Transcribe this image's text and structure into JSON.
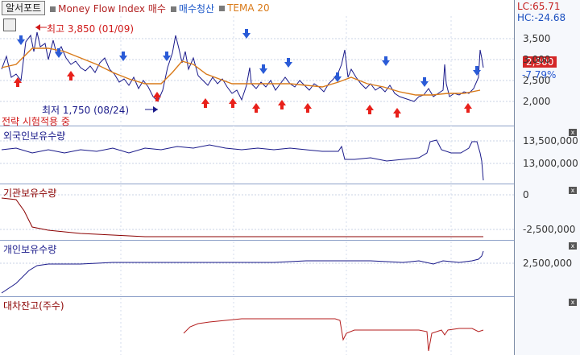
{
  "header": {
    "tab_label": "알서포트",
    "legend": [
      {
        "label": "Money Flow Index 매수",
        "color": "#b22222"
      },
      {
        "label": "매수청산",
        "color": "#1a56c9"
      },
      {
        "label": "TEMA 20",
        "color": "#d97a19"
      }
    ]
  },
  "side": {
    "lc": "LC:65.71",
    "hc": "HC:-24.68",
    "price": "2,900",
    "change": "-7.79%"
  },
  "annotations": {
    "high": "최고 3,850 (01/09)",
    "low": "최저 1,750 (08/24)",
    "status": "전략 시험적용 중"
  },
  "axis": {
    "price": [
      "3,500",
      "3,000",
      "2,500",
      "2,000"
    ],
    "foreign": [
      "13,500,000",
      "13,000,000"
    ],
    "institution": [
      "0",
      "-2,500,000"
    ],
    "individual": [
      "2,500,000"
    ]
  },
  "panes": [
    {
      "title": "외국인보유수량",
      "color": "#1a1a8a"
    },
    {
      "title": "기관보유수량",
      "color": "#8b0000"
    },
    {
      "title": "개인보유수량",
      "color": "#1a1a8a"
    },
    {
      "title": "대차잔고(주수)",
      "color": "#8b0000"
    }
  ],
  "colors": {
    "price_line": "#1a1a8a",
    "tema": "#d97a19",
    "buy_arrow": "#e8201a",
    "sell_arrow": "#2a5bd7"
  }
}
